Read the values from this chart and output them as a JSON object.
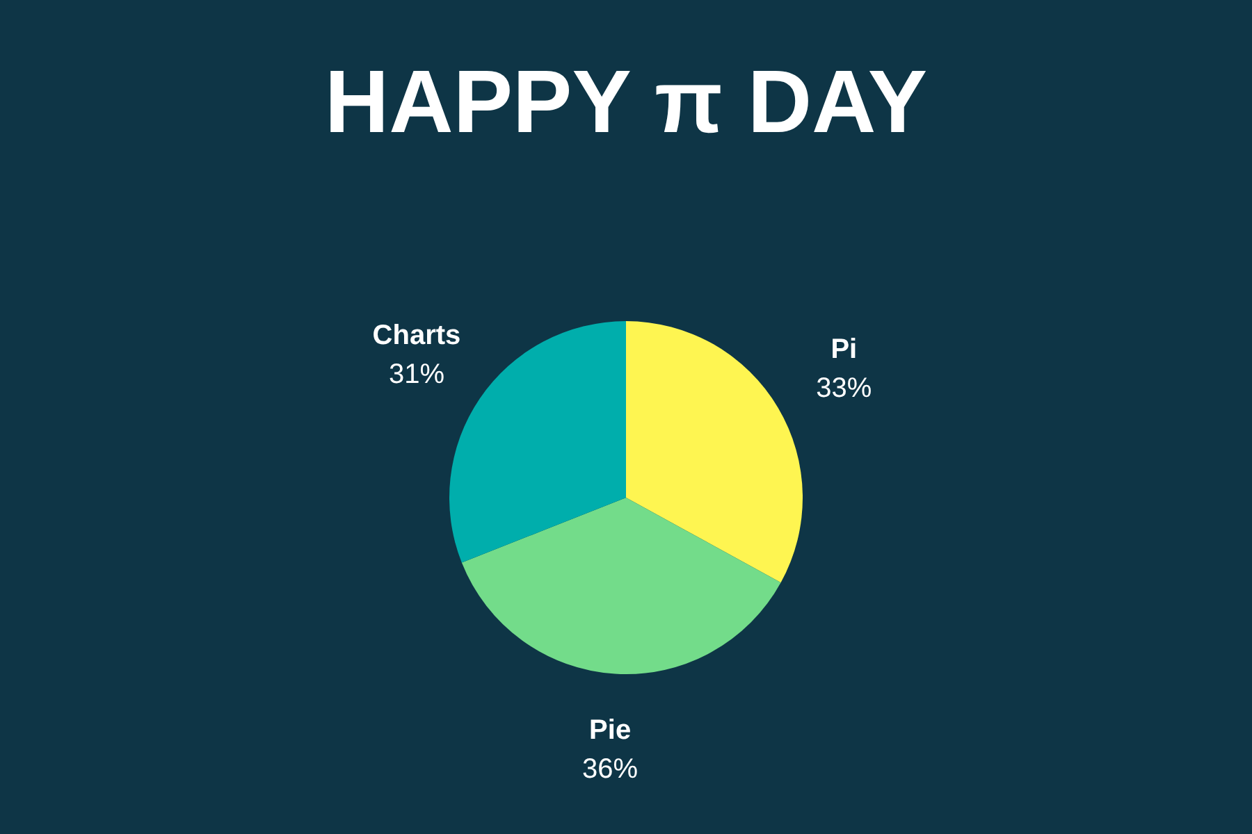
{
  "chart_data": {
    "type": "pie",
    "title": "HAPPY π DAY",
    "categories": [
      "Pi",
      "Pie",
      "Charts"
    ],
    "values": [
      33,
      36,
      31
    ],
    "value_labels": [
      "33%",
      "36%",
      "31%"
    ],
    "colors": [
      "#fef551",
      "#73dc8a",
      "#00aeac"
    ],
    "legend": false
  }
}
